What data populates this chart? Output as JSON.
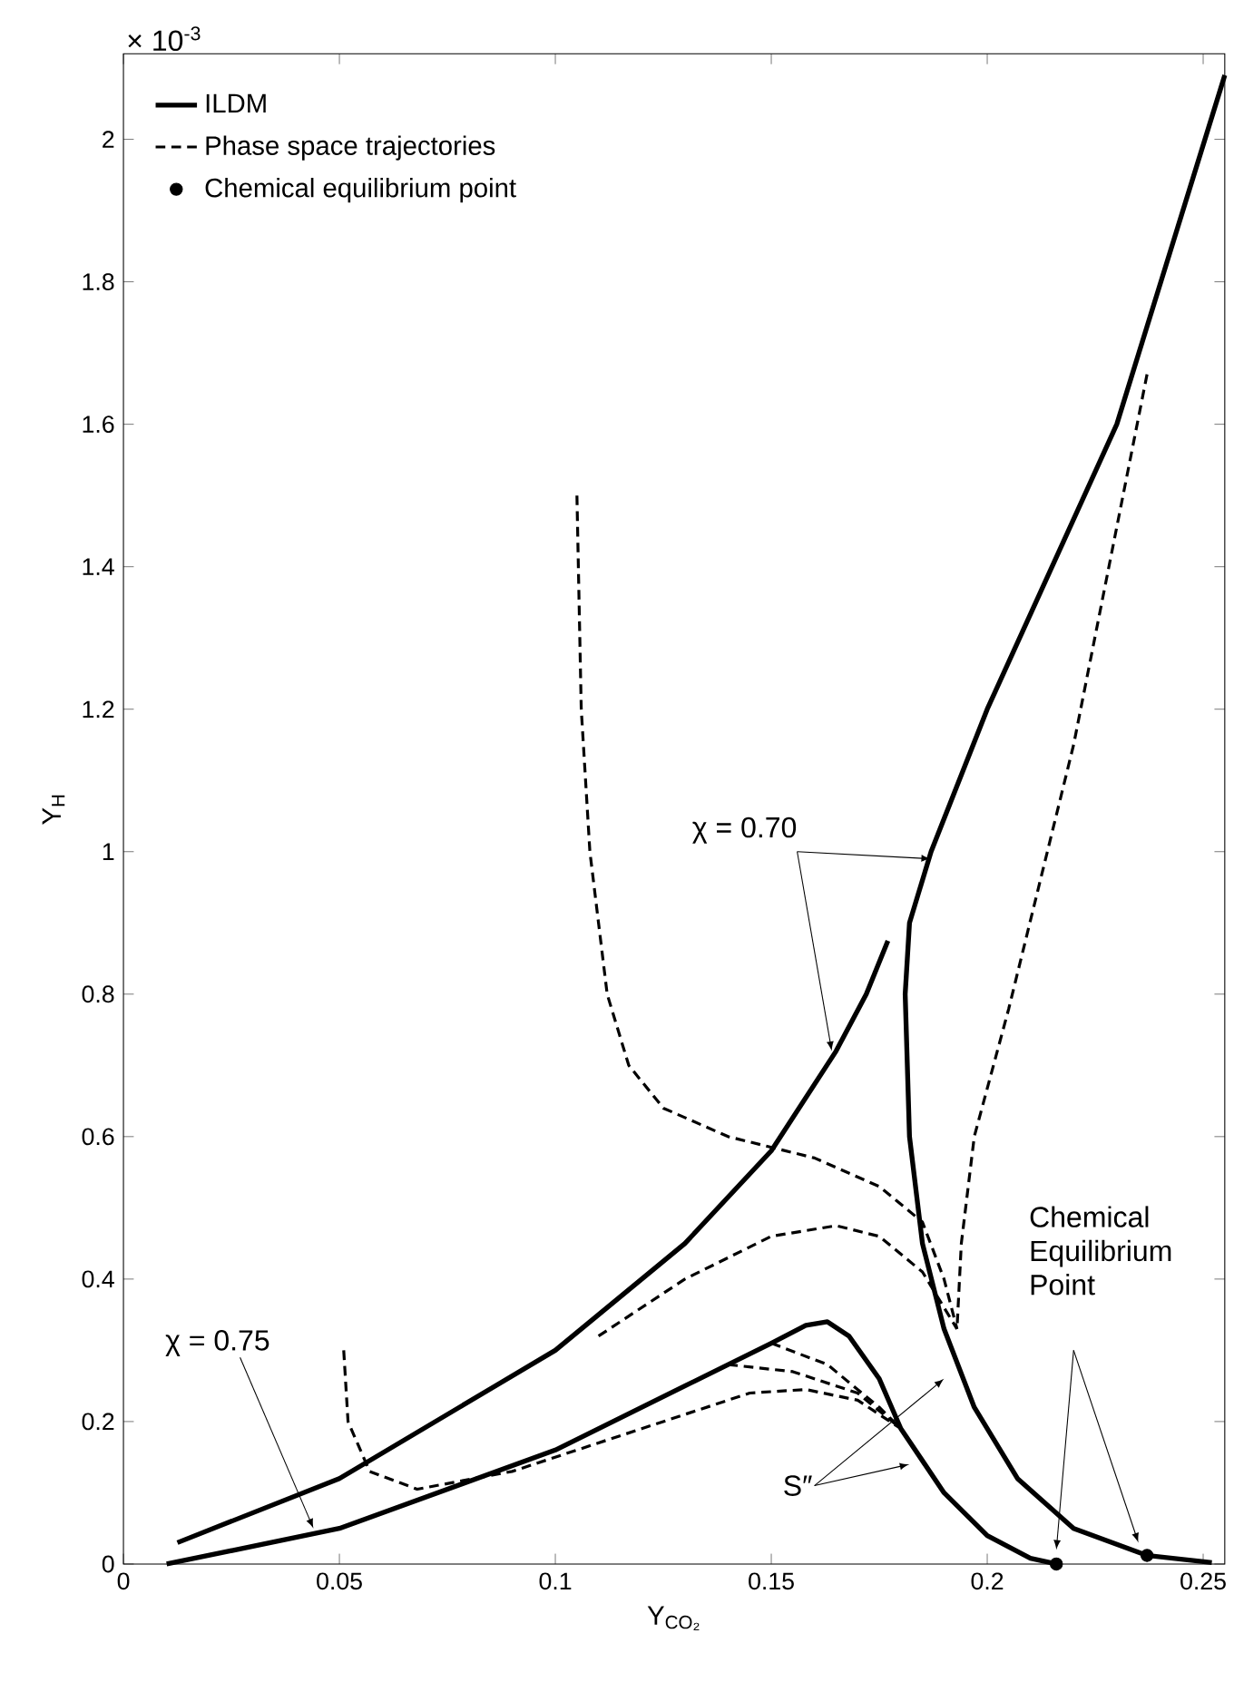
{
  "chart_data": {
    "type": "line",
    "xlabel": "Y$_{CO₂}$",
    "ylabel": "Y$_{H}$",
    "xlim": [
      0,
      0.255
    ],
    "ylim": [
      0,
      2.12
    ],
    "xticks": [
      0,
      0.05,
      0.1,
      0.15,
      0.2,
      0.25
    ],
    "yticks": [
      0,
      0.2,
      0.4,
      0.6,
      0.8,
      1,
      1.2,
      1.4,
      1.6,
      1.8,
      2
    ],
    "legend": "top left",
    "annotations": [
      "× 10$^{-3}$",
      {
        "text": "χ = 0.70",
        "x": 0.187,
        "y": 0.99
      },
      {
        "text": "χ = 0.75",
        "x": 0.044,
        "y": 0.05
      },
      "Chemical Equilibrium Point",
      "S″"
    ],
    "series": [
      {
        "name": "ILDM",
        "color": "#000000",
        "line_style": "solid",
        "x": [
          0.0125,
          0.05,
          0.1,
          0.13,
          0.15,
          0.165,
          0.172,
          0.177
        ],
        "values": [
          0.03,
          0.12,
          0.3,
          0.45,
          0.58,
          0.72,
          0.8,
          0.875
        ]
      },
      {
        "color": "#000000",
        "line_style": "solid",
        "x": [
          0.255,
          0.23,
          0.2,
          0.187,
          0.182,
          0.181,
          0.182,
          0.185,
          0.19,
          0.197,
          0.207,
          0.22,
          0.237,
          0.252
        ],
        "values": [
          2.09,
          1.6,
          1.2,
          1.0,
          0.9,
          0.8,
          0.6,
          0.45,
          0.33,
          0.22,
          0.12,
          0.05,
          0.012,
          0.002
        ]
      },
      {
        "color": "#000000",
        "line_style": "solid",
        "x": [
          0.01,
          0.05,
          0.1,
          0.13,
          0.15,
          0.158,
          0.163,
          0.168,
          0.175,
          0.18,
          0.19,
          0.2,
          0.21,
          0.216
        ],
        "values": [
          0,
          0.05,
          0.16,
          0.25,
          0.31,
          0.335,
          0.34,
          0.32,
          0.26,
          0.19,
          0.1,
          0.04,
          0.008,
          0
        ]
      },
      {
        "name": "Phase space trajectories",
        "color": "#000000",
        "line_style": "dashed",
        "x": [
          0.105,
          0.106,
          0.108,
          0.112,
          0.117,
          0.125,
          0.14,
          0.16,
          0.175,
          0.185,
          0.19,
          0.193
        ],
        "values": [
          1.5,
          1.2,
          1.0,
          0.8,
          0.7,
          0.64,
          0.6,
          0.57,
          0.53,
          0.48,
          0.4,
          0.33
        ]
      },
      {
        "color": "#000000",
        "line_style": "dashed",
        "x": [
          0.237,
          0.22,
          0.205,
          0.197,
          0.194,
          0.193
        ],
        "values": [
          1.67,
          1.15,
          0.78,
          0.6,
          0.45,
          0.33
        ]
      },
      {
        "color": "#000000",
        "line_style": "dashed",
        "x": [
          0.11,
          0.13,
          0.15,
          0.165,
          0.175,
          0.185,
          0.193
        ],
        "values": [
          0.32,
          0.4,
          0.46,
          0.475,
          0.46,
          0.41,
          0.33
        ]
      },
      {
        "color": "#000000",
        "line_style": "dashed",
        "x": [
          0.051,
          0.052,
          0.057,
          0.068,
          0.09,
          0.12,
          0.145,
          0.158,
          0.17,
          0.18
        ],
        "values": [
          0.3,
          0.2,
          0.13,
          0.105,
          0.13,
          0.19,
          0.24,
          0.245,
          0.23,
          0.19
        ]
      },
      {
        "color": "#000000",
        "line_style": "dashed",
        "x": [
          0.14,
          0.155,
          0.17,
          0.18
        ],
        "values": [
          0.28,
          0.27,
          0.24,
          0.19
        ]
      },
      {
        "color": "#000000",
        "line_style": "dashed",
        "x": [
          0.15,
          0.163,
          0.175,
          0.18
        ],
        "values": [
          0.31,
          0.28,
          0.22,
          0.19
        ]
      },
      {
        "name": "Chemical equilibrium point",
        "type": "scatter",
        "color": "#000000",
        "x": [
          0.216,
          0.237
        ],
        "values": [
          0,
          0.012
        ]
      }
    ]
  }
}
